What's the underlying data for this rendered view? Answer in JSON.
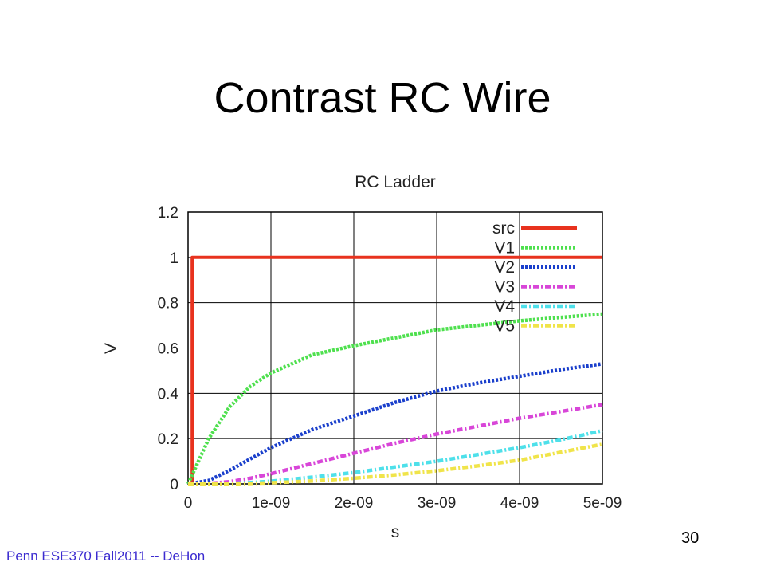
{
  "slide": {
    "title": "Contrast RC Wire",
    "footer": "Penn ESE370 Fall2011 -- DeHon",
    "page_number": "30"
  },
  "chart_data": {
    "type": "line",
    "title": "RC Ladder",
    "xlabel": "s",
    "ylabel": "V",
    "xlim": [
      0,
      5e-09
    ],
    "ylim": [
      0,
      1.2
    ],
    "x_ticks": [
      {
        "value": 0,
        "label": "0"
      },
      {
        "value": 1e-09,
        "label": "1e-09"
      },
      {
        "value": 2e-09,
        "label": "2e-09"
      },
      {
        "value": 3e-09,
        "label": "3e-09"
      },
      {
        "value": 4e-09,
        "label": "4e-09"
      },
      {
        "value": 5e-09,
        "label": "5e-09"
      }
    ],
    "y_ticks": [
      {
        "value": 0,
        "label": "0"
      },
      {
        "value": 0.2,
        "label": "0.2"
      },
      {
        "value": 0.4,
        "label": "0.4"
      },
      {
        "value": 0.6,
        "label": "0.6"
      },
      {
        "value": 0.8,
        "label": "0.8"
      },
      {
        "value": 1,
        "label": "1"
      },
      {
        "value": 1.2,
        "label": "1.2"
      }
    ],
    "grid": true,
    "legend_position": "top-right",
    "series": [
      {
        "name": "src",
        "color": "#e8321e",
        "style": "solid",
        "x": [
          0,
          5e-11,
          5e-11,
          5e-09
        ],
        "y": [
          0,
          0,
          1,
          1
        ]
      },
      {
        "name": "V1",
        "color": "#4ee04e",
        "style": "dotted",
        "x": [
          0,
          2.5e-10,
          5e-10,
          7.5e-10,
          1e-09,
          1.5e-09,
          2e-09,
          2.5e-09,
          3e-09,
          3.5e-09,
          4e-09,
          4.5e-09,
          5e-09
        ],
        "y": [
          0,
          0.2,
          0.34,
          0.43,
          0.49,
          0.57,
          0.61,
          0.645,
          0.68,
          0.7,
          0.72,
          0.735,
          0.75
        ]
      },
      {
        "name": "V2",
        "color": "#1a3fcc",
        "style": "dotted",
        "x": [
          0,
          2.5e-10,
          5e-10,
          7.5e-10,
          1e-09,
          1.5e-09,
          2e-09,
          2.5e-09,
          3e-09,
          3.5e-09,
          4e-09,
          4.5e-09,
          5e-09
        ],
        "y": [
          0,
          0.015,
          0.06,
          0.11,
          0.16,
          0.24,
          0.3,
          0.36,
          0.41,
          0.445,
          0.475,
          0.505,
          0.53
        ]
      },
      {
        "name": "V3",
        "color": "#d846d8",
        "style": "dash-dot",
        "x": [
          0,
          2.5e-10,
          5e-10,
          7.5e-10,
          1e-09,
          1.5e-09,
          2e-09,
          2.5e-09,
          3e-09,
          3.5e-09,
          4e-09,
          4.5e-09,
          5e-09
        ],
        "y": [
          0,
          0.002,
          0.01,
          0.025,
          0.045,
          0.09,
          0.135,
          0.18,
          0.22,
          0.255,
          0.29,
          0.32,
          0.35
        ]
      },
      {
        "name": "V4",
        "color": "#4ee0ea",
        "style": "dash-dot",
        "x": [
          0,
          2.5e-10,
          5e-10,
          7.5e-10,
          1e-09,
          1.5e-09,
          2e-09,
          2.5e-09,
          3e-09,
          3.5e-09,
          4e-09,
          4.5e-09,
          5e-09
        ],
        "y": [
          0,
          0,
          0.002,
          0.006,
          0.012,
          0.03,
          0.05,
          0.075,
          0.1,
          0.13,
          0.16,
          0.195,
          0.235
        ]
      },
      {
        "name": "V5",
        "color": "#f0e44a",
        "style": "dash-dot",
        "x": [
          0,
          2.5e-10,
          5e-10,
          7.5e-10,
          1e-09,
          1.5e-09,
          2e-09,
          2.5e-09,
          3e-09,
          3.5e-09,
          4e-09,
          4.5e-09,
          5e-09
        ],
        "y": [
          0,
          0,
          0,
          0.002,
          0.005,
          0.013,
          0.025,
          0.04,
          0.058,
          0.08,
          0.105,
          0.14,
          0.175
        ]
      }
    ]
  }
}
